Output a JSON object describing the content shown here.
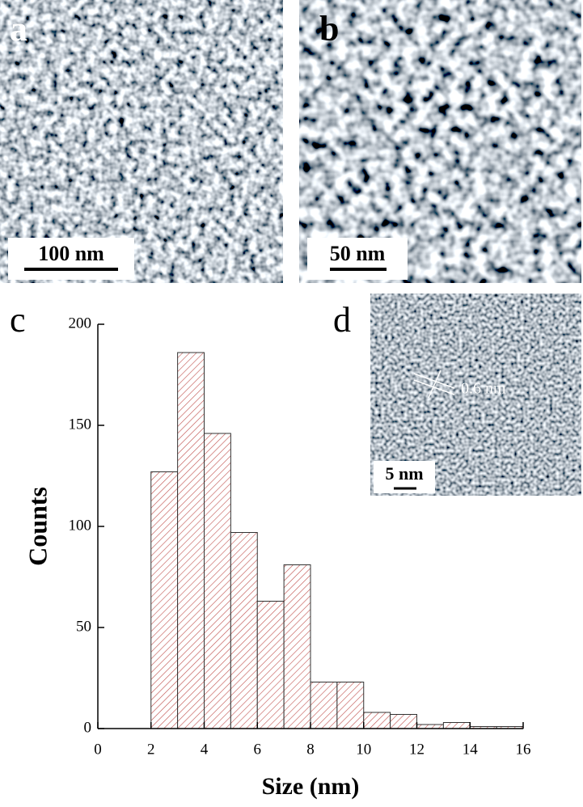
{
  "images": [
    {
      "label": "a",
      "scale_bar": "100 nm"
    },
    {
      "label": "b",
      "scale_bar": "50 nm"
    },
    {
      "label": "d",
      "scale_bar": "5 nm",
      "annotation": "0.6 nm"
    }
  ],
  "chart_data": {
    "type": "histogram",
    "label": "c",
    "x_label": "Size (nm)",
    "y_label": "Counts",
    "bins": [
      2,
      3,
      4,
      5,
      6,
      7,
      8,
      9,
      10,
      11,
      12,
      13,
      14,
      15,
      16
    ],
    "values": [
      127,
      186,
      146,
      97,
      63,
      81,
      23,
      23,
      8,
      7,
      2,
      3,
      1,
      1
    ],
    "color": "#c0504d",
    "xlim": [
      0,
      16
    ],
    "xticks": [
      0,
      2,
      4,
      6,
      8,
      10,
      12,
      14,
      16
    ],
    "ylim": [
      0,
      200
    ],
    "yticks": [
      0,
      50,
      100,
      150,
      200
    ]
  }
}
